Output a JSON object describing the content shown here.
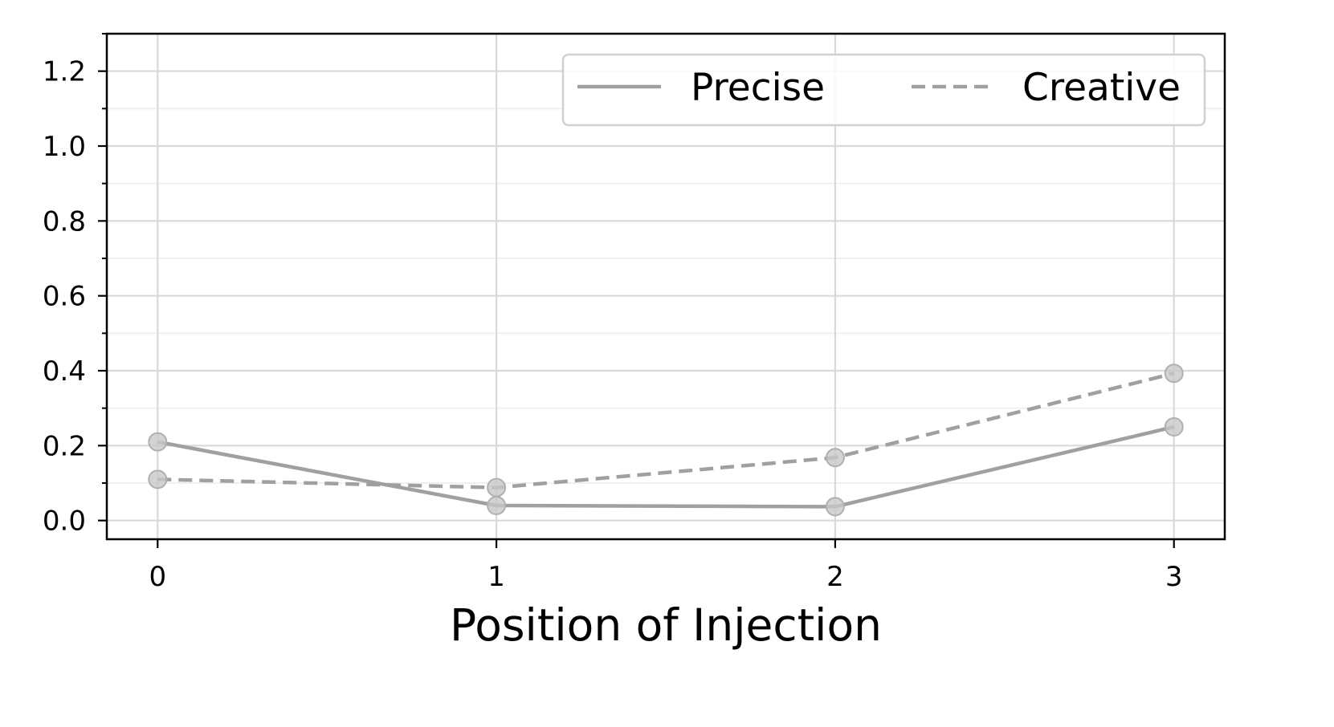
{
  "chart_data": {
    "type": "line",
    "title": "",
    "xlabel": "Position of Injection",
    "ylabel": "",
    "x": [
      0,
      1,
      2,
      3
    ],
    "xticks": [
      "0",
      "1",
      "2",
      "3"
    ],
    "yticks": [
      "0.0",
      "0.2",
      "0.4",
      "0.6",
      "0.8",
      "1.0",
      "1.2"
    ],
    "xlim": [
      -0.15,
      3.15
    ],
    "ylim": [
      -0.05,
      1.3
    ],
    "grid": true,
    "legend_position": "top-right",
    "series": [
      {
        "name": "Precise",
        "style": "solid",
        "color": "#a0a0a0",
        "values": [
          0.21,
          0.04,
          0.037,
          0.25
        ]
      },
      {
        "name": "Creative",
        "style": "dashed",
        "color": "#a0a0a0",
        "values": [
          0.11,
          0.088,
          0.168,
          0.393
        ]
      }
    ]
  }
}
